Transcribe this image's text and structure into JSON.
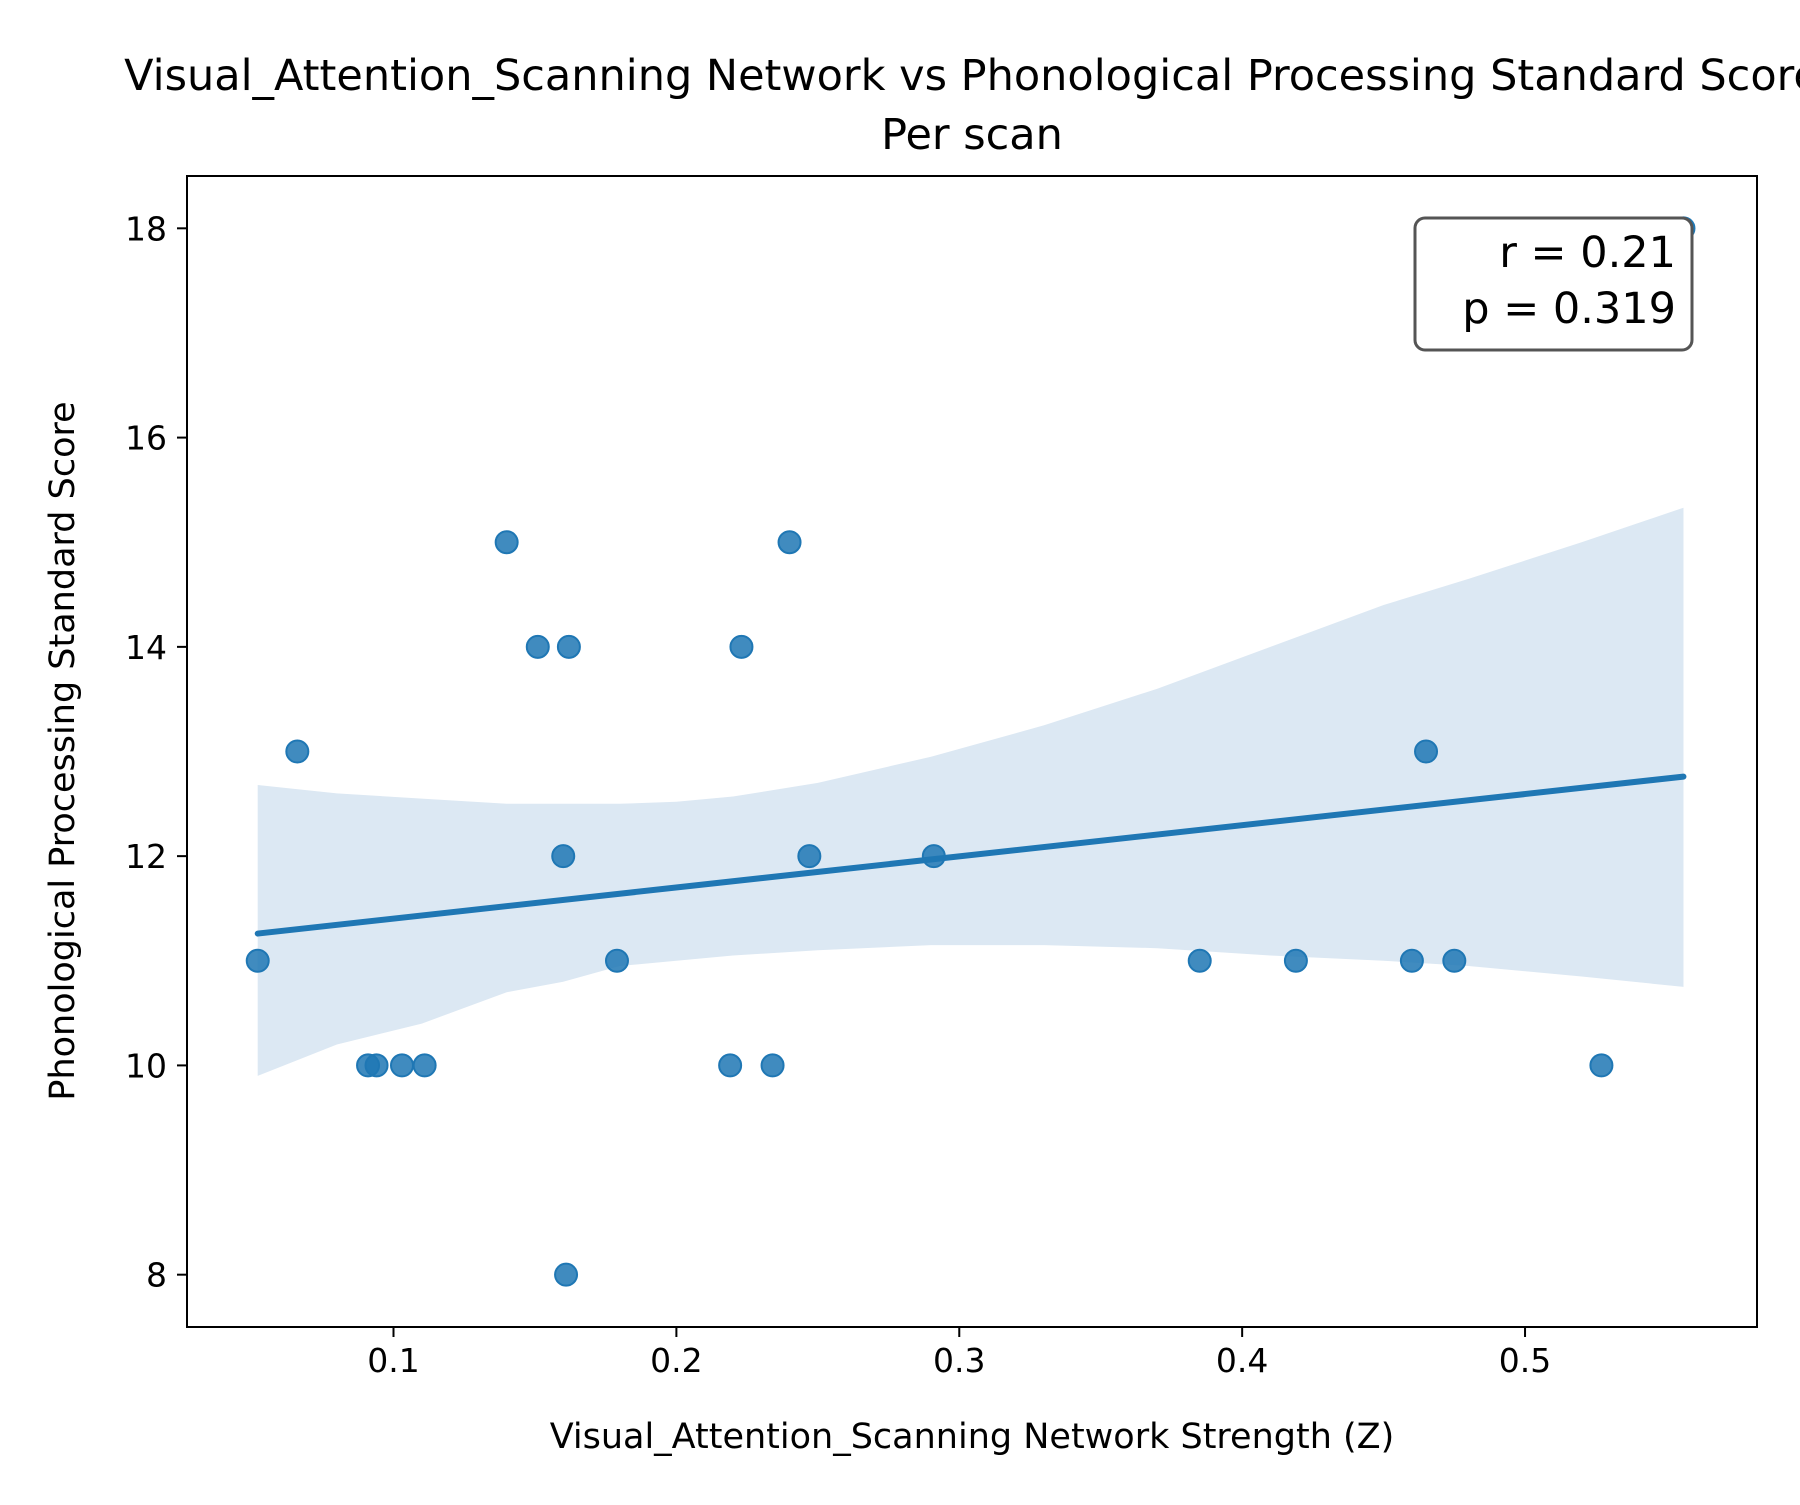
{
  "chart_data": {
    "type": "scatter",
    "title": "Visual_Attention_Scanning Network vs Phonological Processing Standard Score",
    "subtitle": "Per scan",
    "xlabel": "Visual_Attention_Scanning Network Strength (Z)",
    "ylabel": "Phonological Processing Standard Score",
    "xlim": [
      0.027,
      0.582
    ],
    "ylim": [
      7.5,
      18.5
    ],
    "x_ticks": [
      0.1,
      0.2,
      0.3,
      0.4,
      0.5
    ],
    "x_tick_labels": [
      "0.1",
      "0.2",
      "0.3",
      "0.4",
      "0.5"
    ],
    "y_ticks": [
      8,
      10,
      12,
      14,
      16,
      18
    ],
    "y_tick_labels": [
      "8",
      "10",
      "12",
      "14",
      "16",
      "18"
    ],
    "grid": false,
    "points": [
      {
        "x": 0.052,
        "y": 11
      },
      {
        "x": 0.066,
        "y": 13
      },
      {
        "x": 0.091,
        "y": 10
      },
      {
        "x": 0.094,
        "y": 10
      },
      {
        "x": 0.103,
        "y": 10
      },
      {
        "x": 0.111,
        "y": 10
      },
      {
        "x": 0.14,
        "y": 15
      },
      {
        "x": 0.151,
        "y": 14
      },
      {
        "x": 0.16,
        "y": 12
      },
      {
        "x": 0.161,
        "y": 8
      },
      {
        "x": 0.162,
        "y": 14
      },
      {
        "x": 0.179,
        "y": 11
      },
      {
        "x": 0.219,
        "y": 10
      },
      {
        "x": 0.223,
        "y": 14
      },
      {
        "x": 0.234,
        "y": 10
      },
      {
        "x": 0.24,
        "y": 15
      },
      {
        "x": 0.247,
        "y": 12
      },
      {
        "x": 0.291,
        "y": 12
      },
      {
        "x": 0.385,
        "y": 11
      },
      {
        "x": 0.419,
        "y": 11
      },
      {
        "x": 0.46,
        "y": 11
      },
      {
        "x": 0.465,
        "y": 13
      },
      {
        "x": 0.475,
        "y": 11
      },
      {
        "x": 0.527,
        "y": 10
      },
      {
        "x": 0.556,
        "y": 18
      }
    ],
    "regression_line": {
      "x": [
        0.052,
        0.556
      ],
      "y": [
        11.26,
        12.76
      ]
    },
    "confidence_band": {
      "x": [
        0.052,
        0.08,
        0.11,
        0.14,
        0.16,
        0.18,
        0.2,
        0.22,
        0.25,
        0.29,
        0.33,
        0.37,
        0.41,
        0.45,
        0.48,
        0.52,
        0.556
      ],
      "lower": [
        9.9,
        10.2,
        10.4,
        10.7,
        10.8,
        10.95,
        11.0,
        11.05,
        11.1,
        11.15,
        11.15,
        11.12,
        11.05,
        11.0,
        10.95,
        10.85,
        10.75
      ],
      "upper": [
        12.68,
        12.6,
        12.55,
        12.5,
        12.5,
        12.5,
        12.52,
        12.57,
        12.7,
        12.95,
        13.25,
        13.6,
        14.0,
        14.4,
        14.65,
        15.0,
        15.33
      ]
    },
    "annotation": {
      "lines": [
        "r = 0.21",
        "p = 0.319"
      ],
      "placement": "top-right"
    },
    "colors": {
      "points": "#1f77b4",
      "line": "#1f77b4",
      "band": "#dce8f3",
      "annotation_border": "#555555"
    }
  }
}
